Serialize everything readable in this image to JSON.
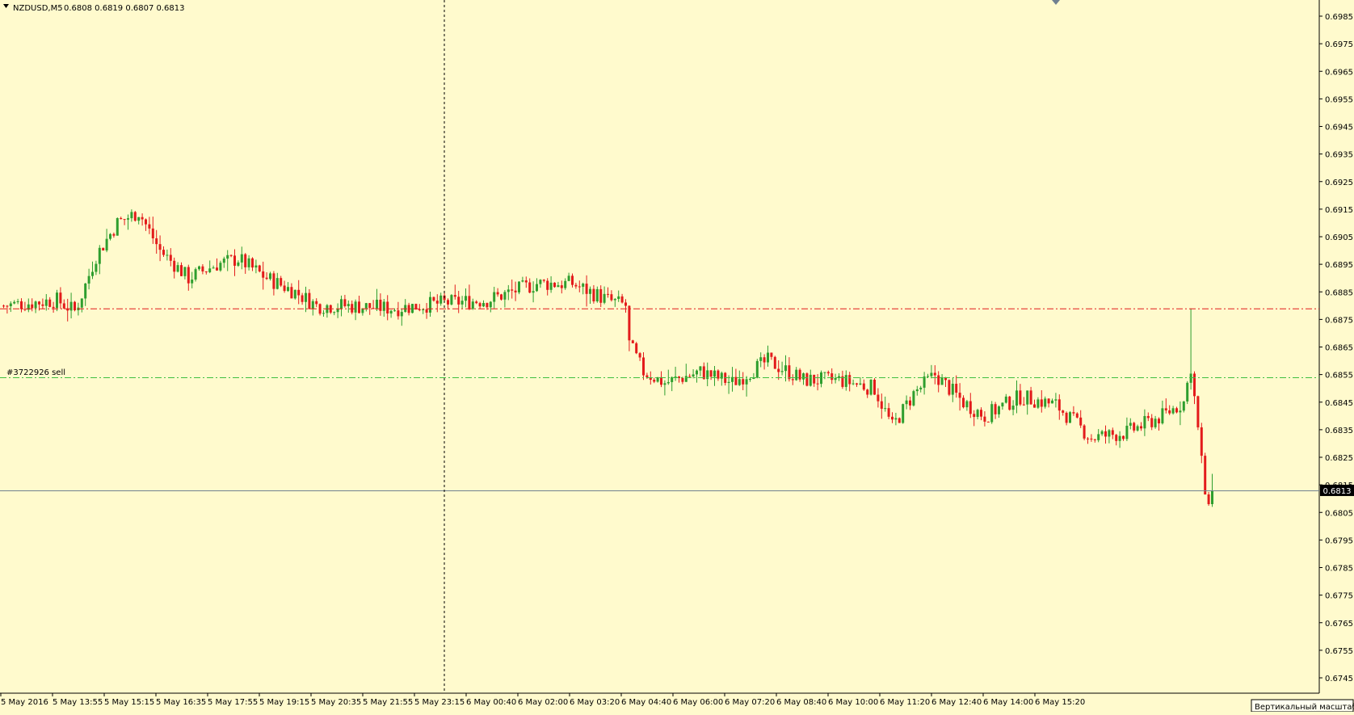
{
  "header": {
    "symbol_timeframe": "NZDUSD,M5",
    "ohlc": "0.6808 0.6819 0.6807 0.6813"
  },
  "order_label": "#3722926 sell",
  "current_price_label": "0.6813",
  "scale_tooltip": "Вертикальный масштаб",
  "colors": {
    "background": "#fffacd",
    "bull": "#2e9e2e",
    "bear": "#e31b1b",
    "stop_line": "#e31b1b",
    "order_line": "#3fbf3f",
    "price_line": "#708090"
  },
  "chart_data": {
    "type": "candlestick",
    "ylim": [
      0.674,
      0.699
    ],
    "y_ticks": [
      "0.6985",
      "0.6975",
      "0.6965",
      "0.6955",
      "0.6945",
      "0.6935",
      "0.6925",
      "0.6915",
      "0.6905",
      "0.6895",
      "0.6885",
      "0.6875",
      "0.6865",
      "0.6855",
      "0.6845",
      "0.6835",
      "0.6825",
      "0.6815",
      "0.6805",
      "0.6795",
      "0.6785",
      "0.6775",
      "0.6765",
      "0.6755",
      "0.6745"
    ],
    "x_ticks": [
      "5 May 2016",
      "5 May 13:55",
      "5 May 15:15",
      "5 May 16:35",
      "5 May 17:55",
      "5 May 19:15",
      "5 May 20:35",
      "5 May 21:55",
      "5 May 23:15",
      "6 May 00:40",
      "6 May 02:00",
      "6 May 03:20",
      "6 May 04:40",
      "6 May 06:00",
      "6 May 07:20",
      "6 May 08:40",
      "6 May 10:00",
      "6 May 11:20",
      "6 May 12:40",
      "6 May 14:00",
      "6 May 15:20"
    ],
    "levels": {
      "stop_level": 0.6879,
      "order_price": 0.6854,
      "current_price": 0.6813
    },
    "path_keypoints": [
      [
        0,
        0.688
      ],
      [
        15,
        0.6882
      ],
      [
        20,
        0.6878
      ],
      [
        22,
        0.6884
      ],
      [
        26,
        0.6898
      ],
      [
        32,
        0.691
      ],
      [
        38,
        0.6914
      ],
      [
        44,
        0.69
      ],
      [
        52,
        0.689
      ],
      [
        60,
        0.6895
      ],
      [
        66,
        0.6897
      ],
      [
        74,
        0.689
      ],
      [
        82,
        0.6885
      ],
      [
        88,
        0.688
      ],
      [
        96,
        0.688
      ],
      [
        110,
        0.6879
      ],
      [
        124,
        0.6881
      ],
      [
        136,
        0.6882
      ],
      [
        150,
        0.6888
      ],
      [
        160,
        0.6888
      ],
      [
        170,
        0.6882
      ],
      [
        175,
        0.688
      ],
      [
        176,
        0.6866
      ],
      [
        180,
        0.6856
      ],
      [
        186,
        0.6852
      ],
      [
        196,
        0.6856
      ],
      [
        205,
        0.6852
      ],
      [
        215,
        0.686
      ],
      [
        225,
        0.6853
      ],
      [
        235,
        0.6853
      ],
      [
        245,
        0.685
      ],
      [
        250,
        0.6836
      ],
      [
        256,
        0.6848
      ],
      [
        262,
        0.6855
      ],
      [
        270,
        0.6845
      ],
      [
        276,
        0.684
      ],
      [
        286,
        0.6847
      ],
      [
        296,
        0.6844
      ],
      [
        306,
        0.6832
      ],
      [
        316,
        0.6834
      ],
      [
        326,
        0.684
      ],
      [
        332,
        0.6845
      ],
      [
        334,
        0.6858
      ],
      [
        336,
        0.6835
      ],
      [
        338,
        0.6812
      ],
      [
        340,
        0.6813
      ]
    ]
  }
}
